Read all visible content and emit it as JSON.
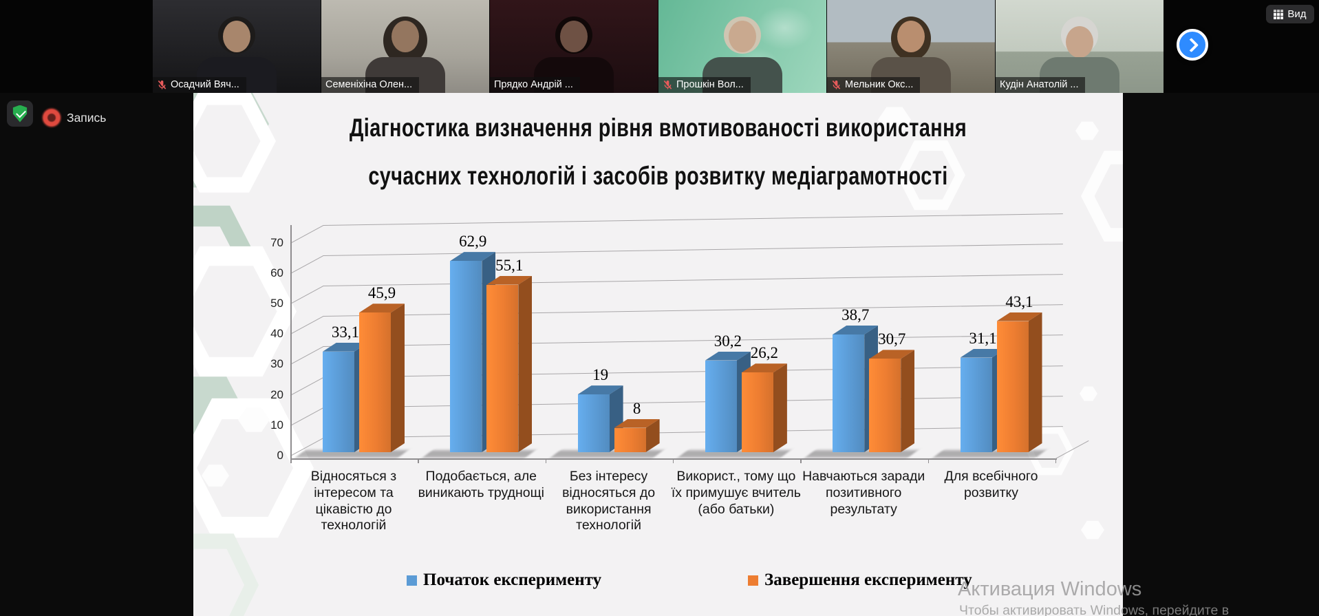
{
  "meeting": {
    "recording_label": "Запись",
    "view_button_label": "Вид",
    "participants": [
      {
        "name": "Осадчий Вяч...",
        "muted": true,
        "active": false
      },
      {
        "name": "Семеніхіна Олен...",
        "muted": false,
        "active": false
      },
      {
        "name": "Прядко Андрій ...",
        "muted": false,
        "active": true
      },
      {
        "name": "Прошкін Вол...",
        "muted": true,
        "active": false
      },
      {
        "name": "Мельник Окс...",
        "muted": true,
        "active": false
      },
      {
        "name": "Кудін Анатолій ...",
        "muted": false,
        "active": false
      }
    ]
  },
  "slide": {
    "title_line1": "Діагностика визначення рівня вмотивованості використання",
    "title_line2": "сучасних технологій і засобів розвитку медіаграмотності"
  },
  "chart_data": {
    "type": "bar",
    "style": "3d-clustered-column",
    "title": "Діагностика визначення рівня вмотивованості використання сучасних технологій і засобів розвитку медіаграмотності",
    "categories": [
      "Відносяться з інтересом та цікавістю до технологій",
      "Подобається, але виникають труднощі",
      "Без інтересу відносяться до використання технологій",
      "Використ., тому що їх примушує вчитель (або батьки)",
      "Навчаються заради позитивного результату",
      "Для всебічного розвитку"
    ],
    "series": [
      {
        "name": "Початок експерименту",
        "color": "#5b9bd5",
        "values": [
          33.1,
          62.9,
          19,
          30.2,
          38.7,
          31.1
        ],
        "labels": [
          "33,1",
          "62,9",
          "19",
          "30,2",
          "38,7",
          "31,1"
        ]
      },
      {
        "name": "Завершення експерименту",
        "color": "#ed7d31",
        "values": [
          45.9,
          55.1,
          8,
          26.2,
          30.7,
          43.1
        ],
        "labels": [
          "45,9",
          "55,1",
          "8",
          "26,2",
          "30,7",
          "43,1"
        ]
      }
    ],
    "ylim": [
      0,
      70
    ],
    "yticks": [
      0,
      10,
      20,
      30,
      40,
      50,
      60,
      70
    ],
    "grid": true,
    "legend_position": "bottom"
  },
  "watermark": {
    "line1": "Активация Windows",
    "line2": "Чтобы активировать Windows, перейдите в"
  }
}
